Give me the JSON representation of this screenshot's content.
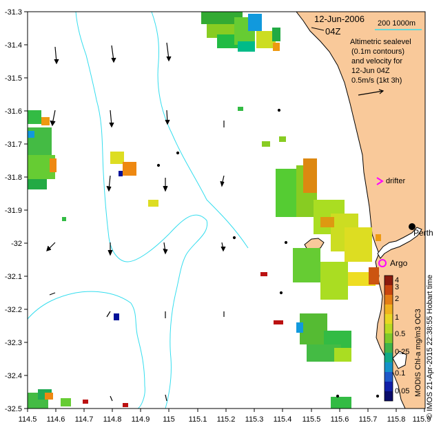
{
  "map": {
    "date_line": "12-Jun-2006",
    "time_line": "04Z",
    "legend_lines": [
      "Altimetric sealevel",
      "(0.1m contours)",
      "and velocity for",
      "12-Jun 04Z",
      "0.5m/s (1kt 3h)"
    ],
    "isobath_label": "200  1000m",
    "labels": {
      "drifter": "drifter",
      "perth": "Perth",
      "argo": "Argo"
    },
    "lon_ticks": [
      "114.5",
      "114.6",
      "114.7",
      "114.8",
      "114.9",
      "115",
      "115.1",
      "115.2",
      "115.3",
      "115.4",
      "115.5",
      "115.6",
      "115.7",
      "115.8",
      "115.9"
    ],
    "lat_ticks": [
      "-31.3",
      "-31.4",
      "-31.5",
      "-31.6",
      "-31.7",
      "-31.8",
      "-31.9",
      "-32",
      "-32.1",
      "-32.2",
      "-32.3",
      "-32.4",
      "-32.5"
    ],
    "colorbar_ticks": [
      "4",
      "3",
      "2",
      "1",
      "0.5",
      "0.25",
      "0.1",
      "0.05"
    ],
    "colorbar_title": "MODIS Chl-a mg/m3 OC3",
    "credit": "© IMOS 21-Apr-2015 22:38:55 Hobart time",
    "colors": {
      "land": "#f9c99a",
      "contour": "#33ddee",
      "drifter_marker": "#ff00ff",
      "argo_marker": "#ff00ff"
    }
  }
}
